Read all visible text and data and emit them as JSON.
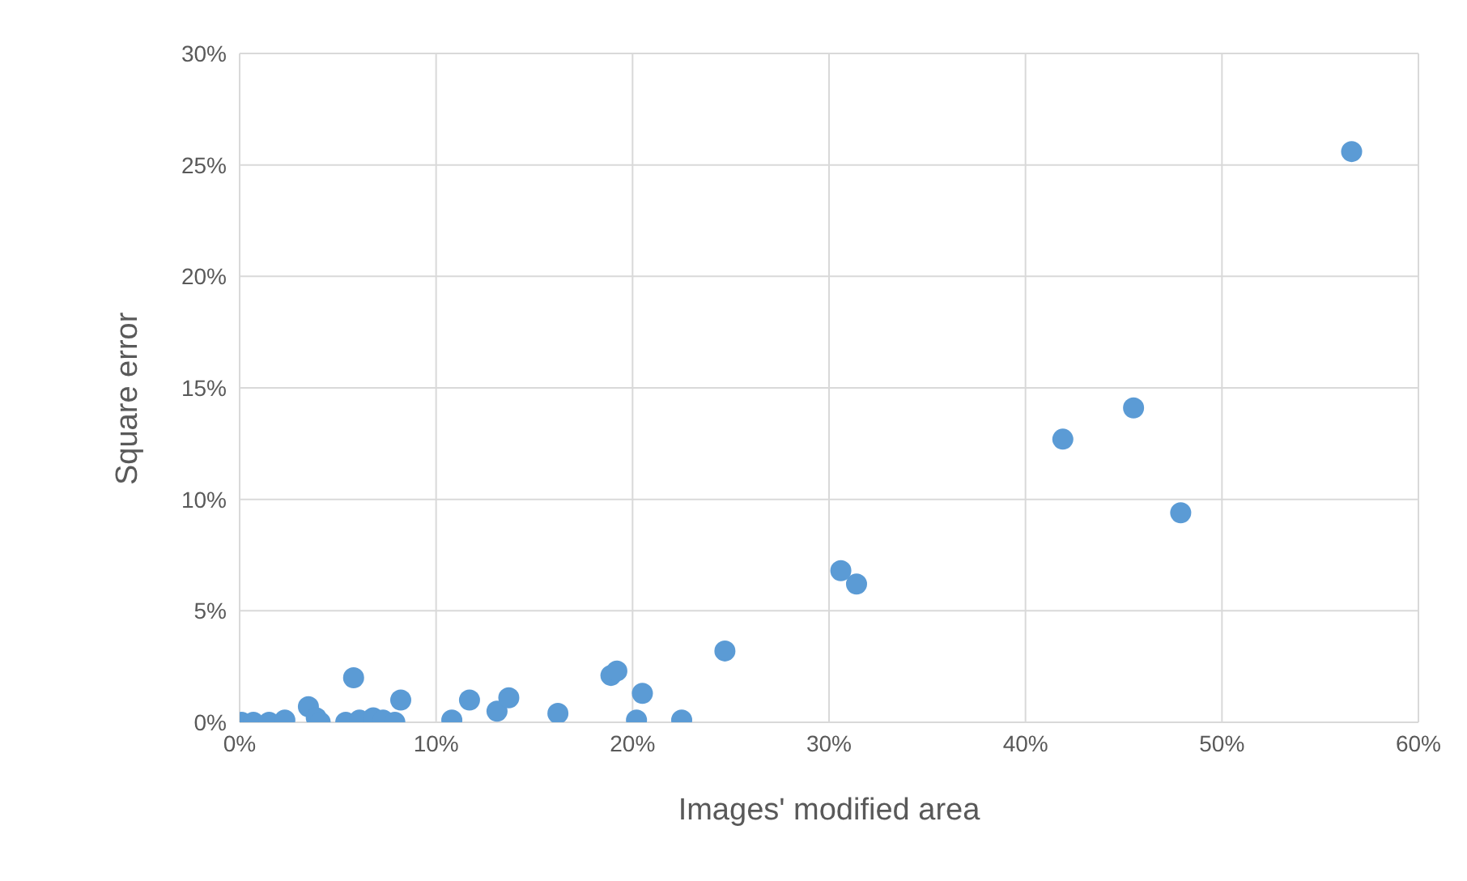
{
  "chart_data": {
    "type": "scatter",
    "xlabel": "Images' modified area",
    "ylabel": "Square error",
    "x": [
      0.1,
      0.7,
      1.5,
      2.3,
      3.5,
      3.9,
      4.1,
      5.4,
      5.8,
      6.1,
      6.8,
      7.3,
      7.9,
      8.2,
      10.8,
      11.7,
      13.1,
      13.7,
      16.2,
      18.9,
      19.2,
      20.2,
      20.5,
      22.5,
      24.7,
      30.6,
      31.4,
      41.9,
      45.5,
      47.9,
      56.6
    ],
    "series": [
      {
        "color": "#5b9bd5",
        "values": [
          0,
          0,
          0,
          0.1,
          0.7,
          0.2,
          0,
          0,
          2.0,
          0.1,
          0.2,
          0.1,
          0,
          1.0,
          0.1,
          1.0,
          0.5,
          1.1,
          0.4,
          2.1,
          2.3,
          0.1,
          1.3,
          0.1,
          3.2,
          6.8,
          6.2,
          12.7,
          14.1,
          9.4,
          25.6
        ]
      }
    ],
    "xlim": [
      0,
      60
    ],
    "ylim": [
      0,
      30
    ],
    "xticks": [
      {
        "value": 0,
        "label": "0%"
      },
      {
        "value": 10,
        "label": "10%"
      },
      {
        "value": 20,
        "label": "20%"
      },
      {
        "value": 30,
        "label": "30%"
      },
      {
        "value": 40,
        "label": "40%"
      },
      {
        "value": 50,
        "label": "50%"
      },
      {
        "value": 60,
        "label": "60%"
      }
    ],
    "yticks": [
      {
        "value": 0,
        "label": "0%"
      },
      {
        "value": 5,
        "label": "5%"
      },
      {
        "value": 10,
        "label": "10%"
      },
      {
        "value": 15,
        "label": "15%"
      },
      {
        "value": 20,
        "label": "20%"
      },
      {
        "value": 25,
        "label": "25%"
      },
      {
        "value": 30,
        "label": "30%"
      }
    ],
    "grid": true,
    "marker": "circle"
  }
}
